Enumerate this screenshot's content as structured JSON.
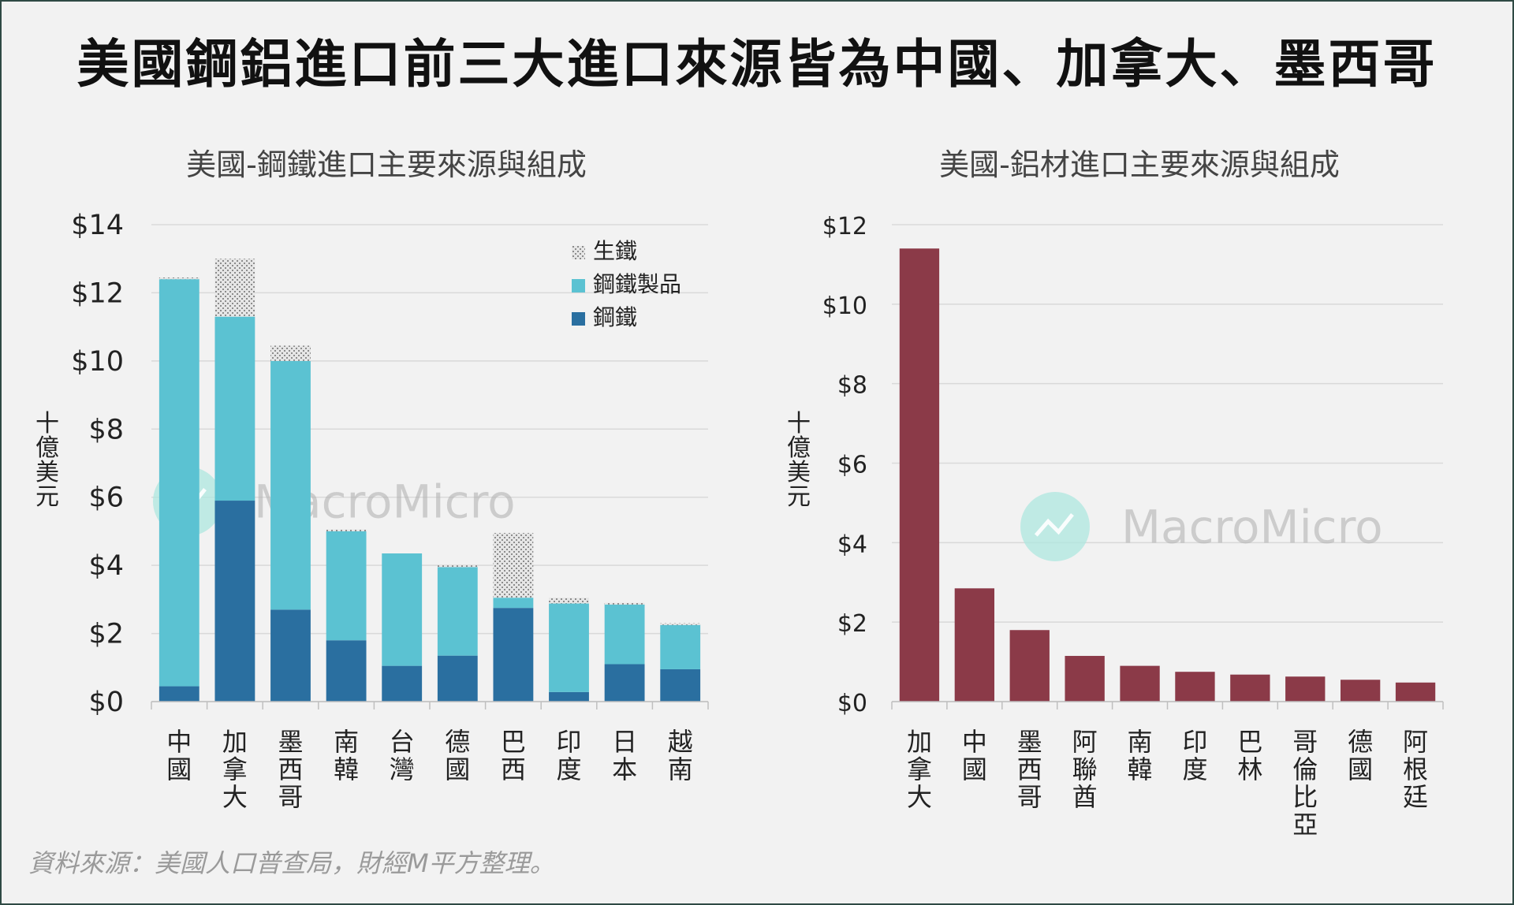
{
  "main_title": "美國鋼鋁進口前三大進口來源皆為中國、加拿大、墨西哥",
  "source_note": "資料來源：美國人口普查局，財經M平方整理。",
  "watermark": "MacroMicro",
  "colors": {
    "steel": "#2a6fa0",
    "steel_products": "#5bc2d2",
    "pig_iron": "#b8b8b8",
    "aluminum": "#8b3a48",
    "grid": "#d9d9d9",
    "axis_text": "#222222",
    "title_text": "#444444",
    "watermark": "#aee7df"
  },
  "chart_data": [
    {
      "type": "bar",
      "stacked": true,
      "title": "美國-鋼鐵進口主要來源與組成",
      "ylabel": "十億美元",
      "xlabel": "",
      "ylim": [
        0,
        14
      ],
      "yticks": [
        0,
        2,
        4,
        6,
        8,
        10,
        12,
        14
      ],
      "ytick_labels": [
        "$0",
        "$2",
        "$4",
        "$6",
        "$8",
        "$10",
        "$12",
        "$14"
      ],
      "grid": true,
      "legend_position": "top-right",
      "categories": [
        "中國",
        "加拿大",
        "墨西哥",
        "南韓",
        "台灣",
        "德國",
        "巴西",
        "印度",
        "日本",
        "越南"
      ],
      "series": [
        {
          "name": "鋼鐵",
          "color_key": "steel",
          "values": [
            0.45,
            5.9,
            2.7,
            1.8,
            1.05,
            1.35,
            2.75,
            0.28,
            1.1,
            0.95
          ]
        },
        {
          "name": "鋼鐵製品",
          "color_key": "steel_products",
          "values": [
            11.95,
            5.4,
            7.3,
            3.2,
            3.3,
            2.6,
            0.3,
            2.6,
            1.75,
            1.3
          ]
        },
        {
          "name": "生鐵",
          "color_key": "pig_iron",
          "values": [
            0.05,
            1.7,
            0.45,
            0.05,
            0.0,
            0.05,
            1.9,
            0.17,
            0.05,
            0.05
          ]
        }
      ],
      "legend_order": [
        "生鐵",
        "鋼鐵製品",
        "鋼鐵"
      ]
    },
    {
      "type": "bar",
      "title": "美國-鋁材進口主要來源與組成",
      "ylabel": "十億美元",
      "xlabel": "",
      "ylim": [
        0,
        12
      ],
      "yticks": [
        0,
        2,
        4,
        6,
        8,
        10,
        12
      ],
      "ytick_labels": [
        "$0",
        "$2",
        "$4",
        "$6",
        "$8",
        "$10",
        "$12"
      ],
      "grid": true,
      "categories": [
        "加拿大",
        "中國",
        "墨西哥",
        "阿聯酋",
        "南韓",
        "印度",
        "巴林",
        "哥倫比亞",
        "德國",
        "阿根廷"
      ],
      "values": [
        11.4,
        2.85,
        1.8,
        1.15,
        0.9,
        0.75,
        0.68,
        0.63,
        0.55,
        0.48
      ]
    }
  ]
}
